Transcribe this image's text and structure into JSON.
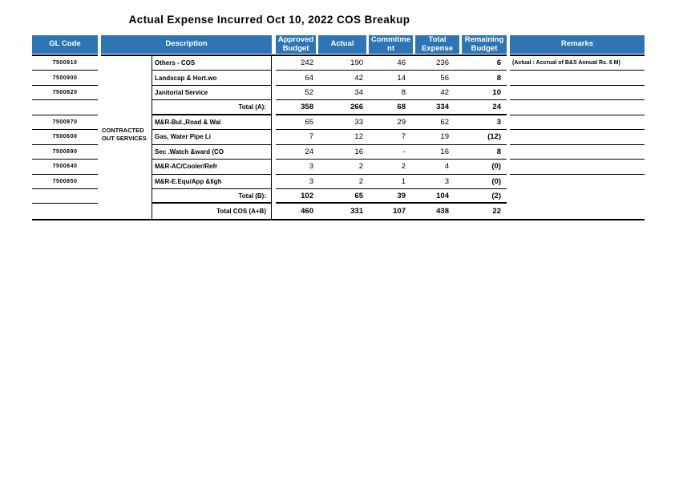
{
  "title": "Actual Expense Incurred Oct 10, 2022 COS Breakup",
  "colors": {
    "header_bg": "#2E75B6",
    "header_text": "#FFFFFF"
  },
  "table": {
    "columns": {
      "gl": "GL Code",
      "description": "Description",
      "approved": "Approved Budget",
      "actual": "Actual",
      "commitment": "Commitment",
      "total_expense": "Total Expense",
      "remaining": "Remaining Budget",
      "remarks": "Remarks"
    },
    "group_label": "CONTRACTED OUT SERVICES",
    "rows": [
      {
        "gl": "7500910",
        "desc": "Others - COS",
        "approved": "242",
        "actual": "190",
        "commitment": "46",
        "total": "236",
        "remaining": "6",
        "remark": "(Actual : Accrual of B&S Annual Rs. 6 M)"
      },
      {
        "gl": "7500900",
        "desc": "Landscap & Hort.wo",
        "approved": "64",
        "actual": "42",
        "commitment": "14",
        "total": "56",
        "remaining": "8",
        "remark": ""
      },
      {
        "gl": "7500820",
        "desc": "Janitorial Service",
        "approved": "52",
        "actual": "34",
        "commitment": "8",
        "total": "42",
        "remaining": "10",
        "remark": ""
      },
      {
        "gl": "",
        "desc": "Total (A):",
        "approved": "358",
        "actual": "266",
        "commitment": "68",
        "total": "334",
        "remaining": "24",
        "remark": ""
      },
      {
        "gl": "7500870",
        "desc": "M&R-Bul.,Road & Wal",
        "approved": "65",
        "actual": "33",
        "commitment": "29",
        "total": "62",
        "remaining": "3",
        "remark": ""
      },
      {
        "gl": "7500600",
        "desc": "Gas, Water Pipe Li",
        "approved": "7",
        "actual": "12",
        "commitment": "7",
        "total": "19",
        "remaining": "(12)",
        "remark": ""
      },
      {
        "gl": "7500890",
        "desc": "Sec .Watch &ward (CO",
        "approved": "24",
        "actual": "16",
        "commitment": "-",
        "total": "16",
        "remaining": "8",
        "remark": ""
      },
      {
        "gl": "7500840",
        "desc": "M&R-AC/Cooler/Refr",
        "approved": "3",
        "actual": "2",
        "commitment": "2",
        "total": "4",
        "remaining": "(0)",
        "remark": ""
      },
      {
        "gl": "7500850",
        "desc": "M&R-E.Equ/App &ligh",
        "approved": "3",
        "actual": "2",
        "commitment": "1",
        "total": "3",
        "remaining": "(0)",
        "remark": ""
      },
      {
        "gl": "",
        "desc": "Total (B):",
        "approved": "102",
        "actual": "65",
        "commitment": "39",
        "total": "104",
        "remaining": "(2)",
        "remark": ""
      },
      {
        "gl": "",
        "desc": "Total COS (A+B)",
        "approved": "460",
        "actual": "331",
        "commitment": "107",
        "total": "438",
        "remaining": "22",
        "remark": ""
      }
    ]
  }
}
